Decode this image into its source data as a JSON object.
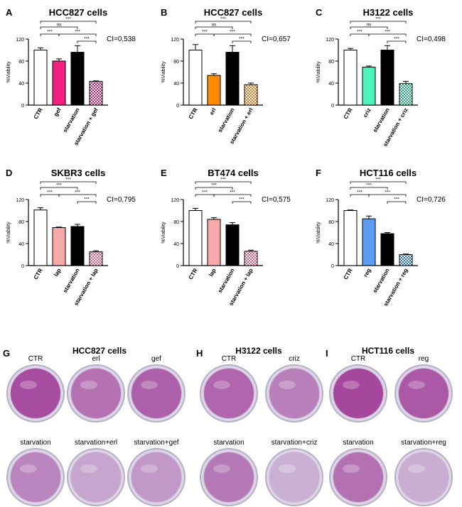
{
  "colors": {
    "white": "#ffffff",
    "magenta": "#f0217f",
    "black": "#000000",
    "orange": "#ff8c00",
    "mint": "#4ff2b8",
    "pink": "#f7a8a8",
    "blue": "#5b9cf0",
    "check_magenta": "#c2186b",
    "check_orange": "#e0781a",
    "check_green": "#1fa37a",
    "check_pink": "#e05a7a",
    "check_blue": "#1f6fc2",
    "dish_purple": "#9a2a8e",
    "dish_pale": "#c9b3d6"
  },
  "chart_data": [
    {
      "type": "bar",
      "letter": "A",
      "title": "HCC827 cells",
      "ylabel": "%Viability",
      "ylim": [
        0,
        120
      ],
      "yticks": [
        "0",
        "40",
        "80",
        "120"
      ],
      "categories": [
        "CTR",
        "gef",
        "starvation",
        "starvation + gef"
      ],
      "values": [
        100,
        80,
        96,
        43
      ],
      "errors": [
        4,
        4,
        12,
        1
      ],
      "fills": [
        "white",
        "magenta",
        "black",
        "check_magenta"
      ],
      "ci": "CI=0,538",
      "sig": [
        {
          "from": 0,
          "to": 3,
          "text": "***"
        },
        {
          "from": 0,
          "to": 2,
          "text": "ns"
        },
        {
          "from": 0,
          "to": 1,
          "text": "***"
        },
        {
          "from": 1,
          "to": 3,
          "text": "***"
        },
        {
          "from": 2,
          "to": 3,
          "text": "***"
        }
      ]
    },
    {
      "type": "bar",
      "letter": "B",
      "title": "HCC827 cells",
      "ylabel": "%Viability",
      "ylim": [
        0,
        120
      ],
      "yticks": [
        "0",
        "40",
        "80",
        "120"
      ],
      "categories": [
        "CTR",
        "erl",
        "starvation",
        "starvation + erl"
      ],
      "values": [
        100,
        54,
        96,
        37
      ],
      "errors": [
        10,
        3,
        12,
        3
      ],
      "fills": [
        "white",
        "orange",
        "black",
        "check_orange"
      ],
      "ci": "CI=0,657",
      "sig": [
        {
          "from": 0,
          "to": 3,
          "text": "***"
        },
        {
          "from": 0,
          "to": 2,
          "text": "ns"
        },
        {
          "from": 0,
          "to": 1,
          "text": "***"
        },
        {
          "from": 1,
          "to": 3,
          "text": "***"
        },
        {
          "from": 2,
          "to": 3,
          "text": "***"
        }
      ]
    },
    {
      "type": "bar",
      "letter": "C",
      "title": "H3122 cells",
      "ylabel": "%Viability",
      "ylim": [
        0,
        120
      ],
      "yticks": [
        "0",
        "40",
        "80",
        "120"
      ],
      "categories": [
        "CTR",
        "criz",
        "starvation",
        "starvation + criz"
      ],
      "values": [
        100,
        69,
        100,
        39
      ],
      "errors": [
        3,
        2,
        8,
        4
      ],
      "fills": [
        "white",
        "mint",
        "black",
        "check_green"
      ],
      "ci": "CI=0,498",
      "sig": [
        {
          "from": 0,
          "to": 3,
          "text": "***"
        },
        {
          "from": 0,
          "to": 2,
          "text": "ns"
        },
        {
          "from": 0,
          "to": 1,
          "text": "***"
        },
        {
          "from": 1,
          "to": 3,
          "text": "***"
        },
        {
          "from": 2,
          "to": 3,
          "text": "***"
        }
      ]
    },
    {
      "type": "bar",
      "letter": "D",
      "title": "SKBR3 cells",
      "ylabel": "%Viability",
      "ylim": [
        0,
        120
      ],
      "yticks": [
        "0",
        "40",
        "80",
        "120"
      ],
      "categories": [
        "CTR",
        "lap",
        "starvation",
        "starvation + lap"
      ],
      "values": [
        101,
        69,
        71,
        25
      ],
      "errors": [
        4,
        1,
        4,
        2
      ],
      "fills": [
        "white",
        "pink",
        "black",
        "check_pink"
      ],
      "ci": "CI=0,795",
      "sig": [
        {
          "from": 0,
          "to": 3,
          "text": "***"
        },
        {
          "from": 0,
          "to": 2,
          "text": "***"
        },
        {
          "from": 0,
          "to": 1,
          "text": "***"
        },
        {
          "from": 1,
          "to": 3,
          "text": "***"
        },
        {
          "from": 2,
          "to": 3,
          "text": "***"
        }
      ]
    },
    {
      "type": "bar",
      "letter": "E",
      "title": "BT474 cells",
      "ylabel": "%Viability",
      "ylim": [
        0,
        120
      ],
      "yticks": [
        "0",
        "40",
        "80",
        "120"
      ],
      "categories": [
        "CTR",
        "lap",
        "starvation",
        "starvation + lap"
      ],
      "values": [
        100,
        84,
        74,
        26
      ],
      "errors": [
        4,
        3,
        4,
        2
      ],
      "fills": [
        "white",
        "pink",
        "black",
        "check_pink"
      ],
      "ci": "CI=0,575",
      "sig": [
        {
          "from": 0,
          "to": 3,
          "text": "***"
        },
        {
          "from": 0,
          "to": 2,
          "text": "***"
        },
        {
          "from": 0,
          "to": 1,
          "text": "***"
        },
        {
          "from": 1,
          "to": 3,
          "text": "***"
        },
        {
          "from": 2,
          "to": 3,
          "text": "***"
        }
      ]
    },
    {
      "type": "bar",
      "letter": "F",
      "title": "HCT116 cells",
      "ylabel": "%Viability",
      "ylim": [
        0,
        120
      ],
      "yticks": [
        "0",
        "40",
        "80",
        "120"
      ],
      "categories": [
        "CTR",
        "reg",
        "starvation",
        "starvation + reg"
      ],
      "values": [
        100,
        85,
        58,
        20
      ],
      "errors": [
        1,
        5,
        2,
        1
      ],
      "fills": [
        "white",
        "blue",
        "black",
        "check_blue"
      ],
      "ci": "CI=0,726",
      "sig": [
        {
          "from": 0,
          "to": 3,
          "text": "***"
        },
        {
          "from": 0,
          "to": 2,
          "text": "***"
        },
        {
          "from": 0,
          "to": 1,
          "text": "***"
        },
        {
          "from": 1,
          "to": 3,
          "text": "***"
        },
        {
          "from": 2,
          "to": 3,
          "text": "***"
        }
      ]
    }
  ],
  "photos": [
    {
      "letter": "G",
      "title": "HCC827 cells",
      "dishes": [
        {
          "label": "CTR",
          "stain": 0.9
        },
        {
          "label": "erl",
          "stain": 0.6
        },
        {
          "label": "gef",
          "stain": 0.75
        },
        {
          "label": "starvation",
          "stain": 0.45
        },
        {
          "label": "starvation+erl",
          "stain": 0.2
        },
        {
          "label": "starvation+gef",
          "stain": 0.3
        }
      ]
    },
    {
      "letter": "H",
      "title": "H3122 cells",
      "dishes": [
        {
          "label": "CTR",
          "stain": 0.7
        },
        {
          "label": "criz",
          "stain": 0.5
        },
        {
          "label": "starvation",
          "stain": 0.55
        },
        {
          "label": "starvation+criz",
          "stain": 0.1
        }
      ]
    },
    {
      "letter": "I",
      "title": "HCT116 cells",
      "dishes": [
        {
          "label": "CTR",
          "stain": 0.95
        },
        {
          "label": "reg",
          "stain": 0.8
        },
        {
          "label": "starvation",
          "stain": 0.6
        },
        {
          "label": "starvation+reg",
          "stain": 0.12
        }
      ]
    }
  ]
}
